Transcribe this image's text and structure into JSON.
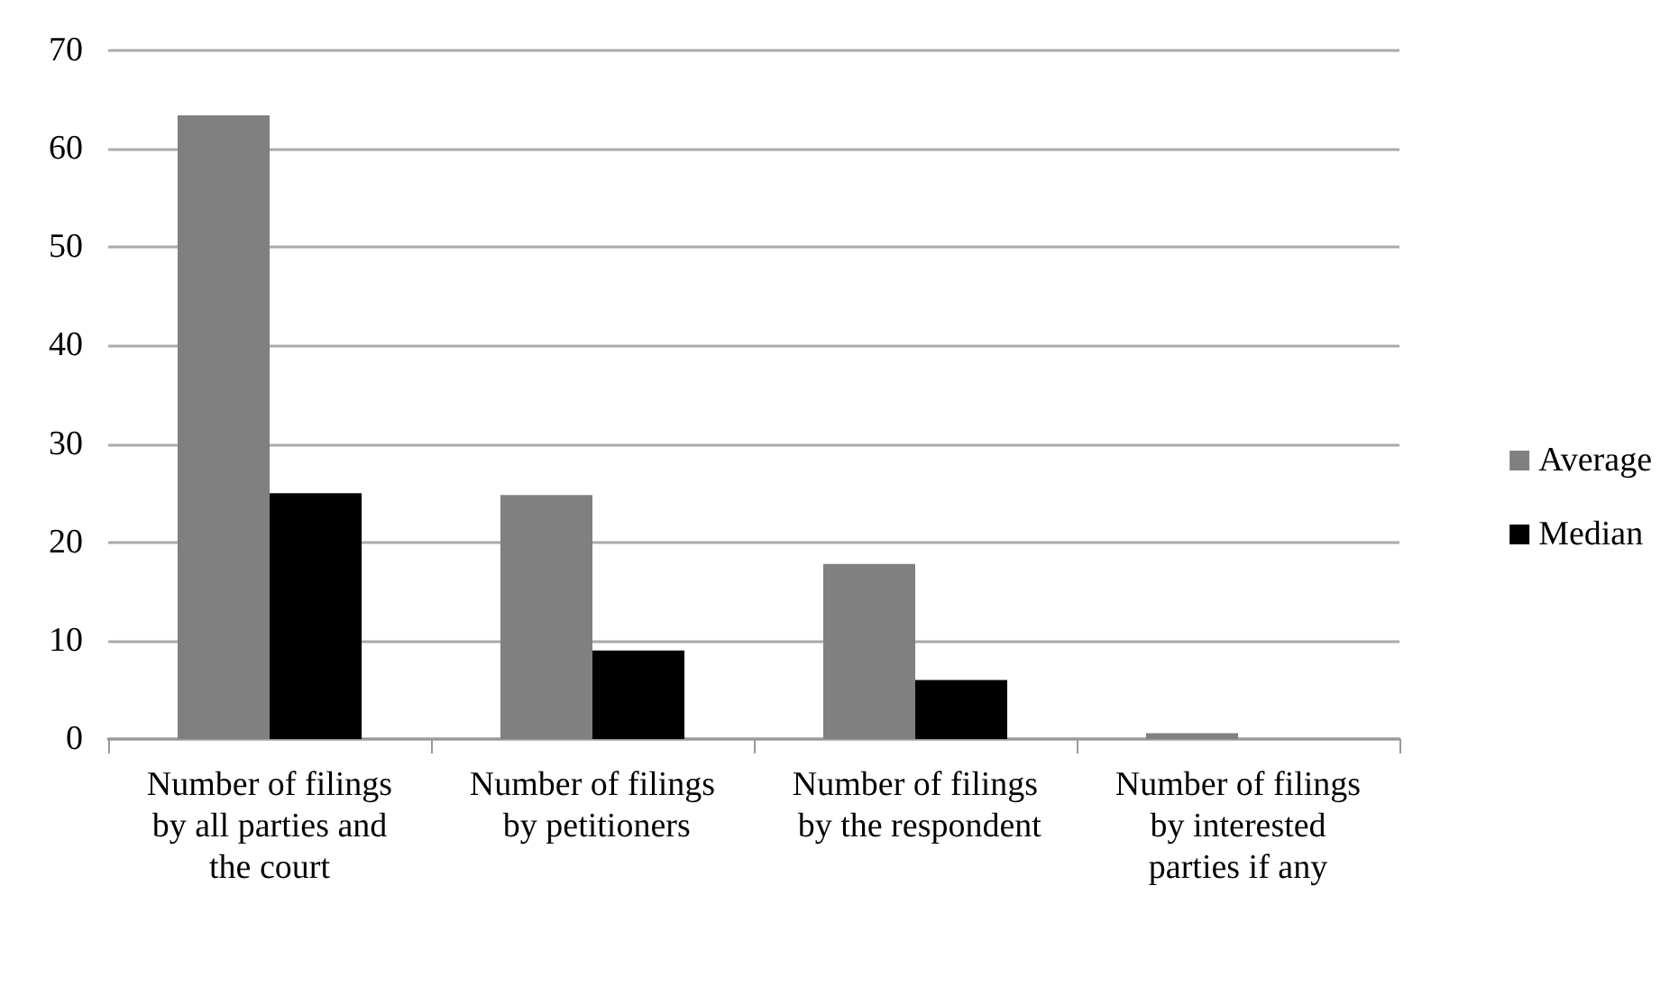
{
  "chart_data": {
    "type": "bar",
    "categories": [
      "Number of filings by all parties and the court",
      "Number of filings by petitioners",
      "Number of filings by the respondent",
      "Number of filings by interested parties if any"
    ],
    "series": [
      {
        "name": "Average",
        "color": "#808080",
        "values": [
          63.4,
          24.8,
          17.8,
          0.6
        ]
      },
      {
        "name": "Median",
        "color": "#000000",
        "values": [
          25,
          9,
          6,
          0
        ]
      }
    ],
    "ylim": [
      0,
      70
    ],
    "yticks": [
      0,
      10,
      20,
      30,
      40,
      50,
      60,
      70
    ],
    "grid": "y",
    "legend": "right"
  }
}
